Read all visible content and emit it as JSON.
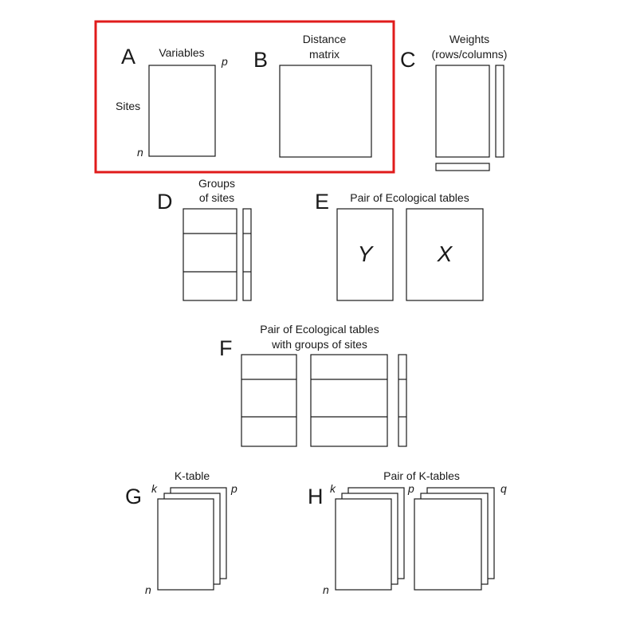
{
  "colors": {
    "highlight": "#e01b1b",
    "stroke": "#1a1a1a"
  },
  "panels": {
    "a": {
      "letter": "A",
      "cols_label": "Variables",
      "rows_label": "Sites",
      "p": "p",
      "n": "n"
    },
    "b": {
      "letter": "B",
      "title_line1": "Distance",
      "title_line2": "matrix"
    },
    "c": {
      "letter": "C",
      "title_line1": "Weights",
      "title_line2": "(rows/columns)"
    },
    "d": {
      "letter": "D",
      "title_line1": "Groups",
      "title_line2": "of sites"
    },
    "e": {
      "letter": "E",
      "title": "Pair of Ecological tables",
      "y": "Y",
      "x": "X"
    },
    "f": {
      "letter": "F",
      "title_line1": "Pair of Ecological tables",
      "title_line2": "with groups of sites"
    },
    "g": {
      "letter": "G",
      "title": "K-table",
      "k": "k",
      "p": "p",
      "n": "n"
    },
    "h": {
      "letter": "H",
      "title": "Pair of K-tables",
      "k": "k",
      "p": "p",
      "q": "q",
      "n": "n"
    }
  }
}
